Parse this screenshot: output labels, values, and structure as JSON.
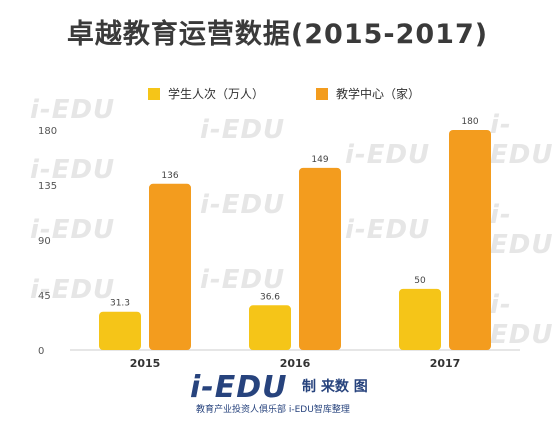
{
  "title": "卓越教育运营数据(2015-2017)",
  "legend": [
    {
      "label": "学生人次（万人）",
      "color": "#f5c518"
    },
    {
      "label": "教学中心（家）",
      "color": "#f39c1e"
    }
  ],
  "chart_data": {
    "type": "bar",
    "categories": [
      "2015",
      "2016",
      "2017"
    ],
    "series": [
      {
        "name": "学生人次（万人）",
        "values": [
          31.3,
          36.6,
          50
        ],
        "labels": [
          "31.3",
          "36.6",
          "50"
        ],
        "color": "#f5c518"
      },
      {
        "name": "教学中心（家）",
        "values": [
          136,
          149,
          180
        ],
        "labels": [
          "136",
          "149",
          "180"
        ],
        "color": "#f39c1e"
      }
    ],
    "yticks": [
      0,
      45,
      90,
      135,
      180
    ],
    "ylim": [
      0,
      180
    ],
    "grid": false,
    "legend_position": "top"
  },
  "watermark": "i-EDU",
  "footer": {
    "logo": "i-EDU",
    "subtitle": "教育产业投资人俱乐部  i-EDU智库整理",
    "note": "制 来数 图"
  }
}
